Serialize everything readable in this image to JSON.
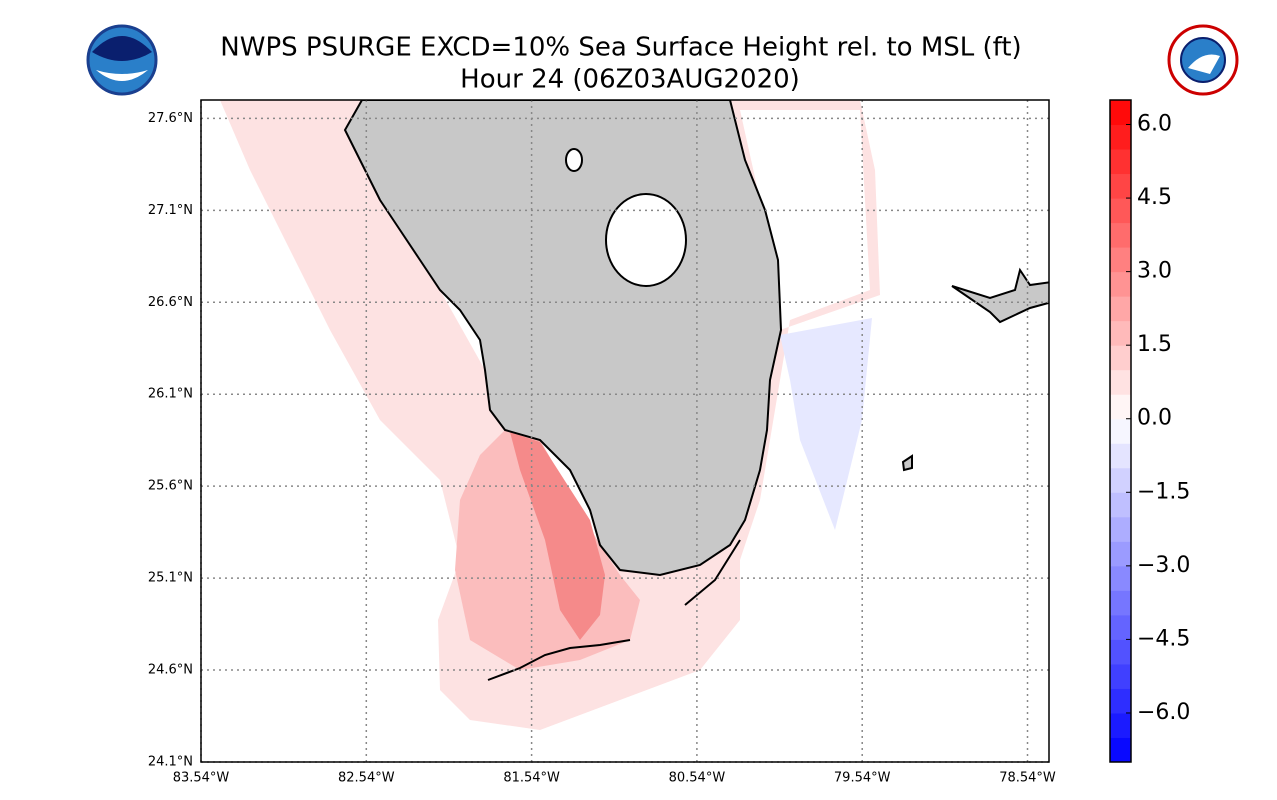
{
  "title": "NWPS PSURGE EXCD=10% Sea Surface Height rel. to MSL (ft)",
  "subtitle": "Hour 24 (06Z03AUG2020)",
  "map": {
    "xlim": [
      -83.54,
      -78.41
    ],
    "ylim": [
      24.1,
      27.7
    ],
    "xticks": [
      {
        "value": -83.54,
        "label": "83.54°W"
      },
      {
        "value": -82.54,
        "label": "82.54°W"
      },
      {
        "value": -81.54,
        "label": "81.54°W"
      },
      {
        "value": -80.54,
        "label": "80.54°W"
      },
      {
        "value": -79.54,
        "label": "79.54°W"
      },
      {
        "value": -78.54,
        "label": "78.54°W"
      }
    ],
    "yticks": [
      {
        "value": 24.1,
        "label": "24.1°N"
      },
      {
        "value": 24.6,
        "label": "24.6°N"
      },
      {
        "value": 25.1,
        "label": "25.1°N"
      },
      {
        "value": 25.6,
        "label": "25.6°N"
      },
      {
        "value": 26.1,
        "label": "26.1°N"
      },
      {
        "value": 26.6,
        "label": "26.6°N"
      },
      {
        "value": 27.1,
        "label": "27.1°N"
      },
      {
        "value": 27.6,
        "label": "27.6°N"
      }
    ],
    "grid": true
  },
  "colorbar": {
    "clim": [
      -7,
      6.5
    ],
    "step": 0.5,
    "low_color": "#0000ff",
    "mid_color": "#ffffff",
    "high_color": "#ff0000",
    "ticks": [
      {
        "value": 6,
        "label": "6.0"
      },
      {
        "value": 4.5,
        "label": "4.5"
      },
      {
        "value": 3,
        "label": "3.0"
      },
      {
        "value": 1.5,
        "label": "1.5"
      },
      {
        "value": 0,
        "label": "0.0"
      },
      {
        "value": -1.5,
        "label": "−1.5"
      },
      {
        "value": -3,
        "label": "−3.0"
      },
      {
        "value": -4.5,
        "label": "−4.5"
      },
      {
        "value": -6,
        "label": "−6.0"
      }
    ]
  }
}
